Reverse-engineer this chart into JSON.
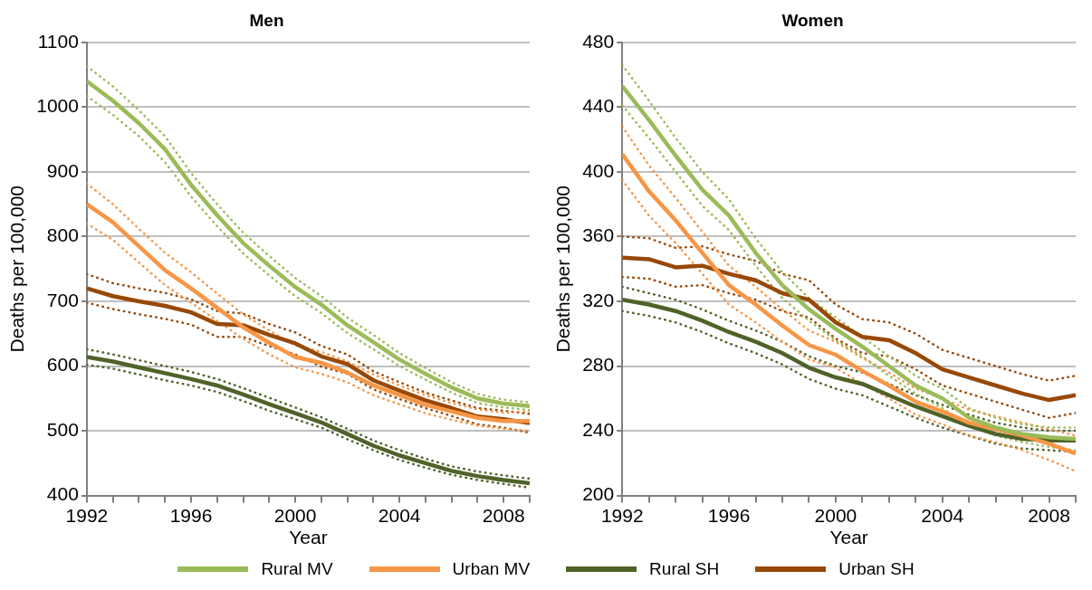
{
  "chart_data": [
    {
      "type": "line",
      "title": "Men",
      "xlabel": "Year",
      "ylabel": "Deaths per 100,000",
      "x": [
        1992,
        1993,
        1994,
        1995,
        1996,
        1997,
        1998,
        1999,
        2000,
        2001,
        2002,
        2003,
        2004,
        2005,
        2006,
        2007,
        2008,
        2009
      ],
      "xlim": [
        1992,
        2009
      ],
      "xticks": [
        1992,
        {
          "value": 1993,
          "label": null
        },
        {
          "value": 1994,
          "label": null
        },
        {
          "value": 1995,
          "label": null
        },
        1996,
        {
          "value": 1997,
          "label": null
        },
        {
          "value": 1998,
          "label": null
        },
        {
          "value": 1999,
          "label": null
        },
        2000,
        {
          "value": 2001,
          "label": null
        },
        {
          "value": 2002,
          "label": null
        },
        {
          "value": 2003,
          "label": null
        },
        2004,
        {
          "value": 2005,
          "label": null
        },
        {
          "value": 2006,
          "label": null
        },
        {
          "value": 2007,
          "label": null
        },
        2008,
        {
          "value": 2009,
          "label": null
        }
      ],
      "ylim": [
        400,
        1100
      ],
      "yticks": [
        400,
        500,
        600,
        700,
        800,
        900,
        1000,
        1100
      ],
      "grid": "y",
      "legend": "bottom",
      "line_style": "solid",
      "marker": "none",
      "series": [
        {
          "name": "Rural MV",
          "color": "#9bbb59",
          "values": [
            1040,
            1010,
            975,
            935,
            880,
            833,
            790,
            755,
            722,
            695,
            663,
            637,
            610,
            588,
            567,
            550,
            542,
            538
          ]
        },
        {
          "color": "#9bbb59",
          "line_style": "dotted",
          "values": [
            1017,
            988,
            955,
            915,
            862,
            816,
            774,
            740,
            708,
            682,
            651,
            626,
            600,
            579,
            559,
            543,
            536,
            532
          ]
        },
        {
          "color": "#9bbb59",
          "line_style": "dotted",
          "values": [
            1063,
            1032,
            995,
            955,
            898,
            850,
            806,
            770,
            736,
            708,
            675,
            648,
            620,
            597,
            575,
            557,
            548,
            544
          ]
        },
        {
          "name": "Urban MV",
          "color": "#f79646",
          "values": [
            850,
            822,
            785,
            748,
            720,
            690,
            660,
            636,
            614,
            605,
            590,
            570,
            555,
            540,
            530,
            520,
            515,
            515
          ]
        },
        {
          "color": "#f79646",
          "line_style": "dotted",
          "values": [
            820,
            795,
            760,
            725,
            698,
            670,
            642,
            618,
            598,
            588,
            575,
            555,
            541,
            527,
            517,
            508,
            503,
            500
          ]
        },
        {
          "color": "#f79646",
          "line_style": "dotted",
          "values": [
            882,
            850,
            812,
            775,
            745,
            712,
            680,
            655,
            632,
            622,
            607,
            587,
            570,
            555,
            543,
            533,
            528,
            530
          ]
        },
        {
          "name": "Rural SH",
          "color": "#4f6228",
          "values": [
            614,
            607,
            598,
            589,
            580,
            570,
            556,
            541,
            527,
            513,
            495,
            477,
            462,
            450,
            438,
            430,
            424,
            419
          ]
        },
        {
          "color": "#4f6228",
          "line_style": "dotted",
          "values": [
            602,
            596,
            587,
            578,
            570,
            560,
            546,
            531,
            518,
            505,
            487,
            470,
            455,
            443,
            432,
            424,
            418,
            412
          ]
        },
        {
          "color": "#4f6228",
          "line_style": "dotted",
          "values": [
            626,
            618,
            609,
            600,
            591,
            580,
            566,
            551,
            536,
            521,
            503,
            485,
            470,
            457,
            445,
            437,
            431,
            426
          ]
        },
        {
          "name": "Urban SH",
          "color": "#984807",
          "values": [
            720,
            708,
            700,
            693,
            683,
            665,
            663,
            648,
            635,
            615,
            603,
            578,
            562,
            547,
            535,
            522,
            518,
            512
          ]
        },
        {
          "color": "#984807",
          "line_style": "dotted",
          "values": [
            698,
            688,
            680,
            673,
            664,
            645,
            645,
            631,
            618,
            599,
            588,
            564,
            549,
            535,
            523,
            510,
            505,
            497
          ]
        },
        {
          "color": "#984807",
          "line_style": "dotted",
          "values": [
            742,
            728,
            720,
            713,
            703,
            685,
            681,
            665,
            652,
            631,
            618,
            592,
            575,
            559,
            547,
            535,
            531,
            526
          ]
        }
      ]
    },
    {
      "type": "line",
      "title": "Women",
      "xlabel": "Year",
      "ylabel": "Deaths per 100,000",
      "x": [
        1992,
        1993,
        1994,
        1995,
        1996,
        1997,
        1998,
        1999,
        2000,
        2001,
        2002,
        2003,
        2004,
        2005,
        2006,
        2007,
        2008,
        2009
      ],
      "xlim": [
        1992,
        2009
      ],
      "xticks": [
        1992,
        {
          "value": 1993,
          "label": null
        },
        {
          "value": 1994,
          "label": null
        },
        {
          "value": 1995,
          "label": null
        },
        1996,
        {
          "value": 1997,
          "label": null
        },
        {
          "value": 1998,
          "label": null
        },
        {
          "value": 1999,
          "label": null
        },
        2000,
        {
          "value": 2001,
          "label": null
        },
        {
          "value": 2002,
          "label": null
        },
        {
          "value": 2003,
          "label": null
        },
        2004,
        {
          "value": 2005,
          "label": null
        },
        {
          "value": 2006,
          "label": null
        },
        {
          "value": 2007,
          "label": null
        },
        2008,
        {
          "value": 2009,
          "label": null
        }
      ],
      "ylim": [
        200,
        480
      ],
      "yticks": [
        200,
        240,
        280,
        320,
        360,
        400,
        440,
        480
      ],
      "grid": "y",
      "line_style": "solid",
      "marker": "none",
      "series": [
        {
          "color": "#9bbb59",
          "values": [
            453,
            432,
            410,
            389,
            373,
            350,
            330,
            315,
            303,
            292,
            280,
            268,
            260,
            248,
            242,
            238,
            236,
            235
          ]
        },
        {
          "color": "#9bbb59",
          "line_style": "dotted",
          "values": [
            441,
            421,
            400,
            379,
            364,
            342,
            322,
            308,
            296,
            286,
            274,
            263,
            254,
            243,
            237,
            233,
            230,
            228
          ]
        },
        {
          "color": "#9bbb59",
          "line_style": "dotted",
          "values": [
            466,
            444,
            421,
            400,
            383,
            359,
            338,
            322,
            310,
            298,
            286,
            274,
            266,
            254,
            248,
            244,
            242,
            242
          ]
        },
        {
          "color": "#f79646",
          "values": [
            411,
            388,
            370,
            350,
            330,
            318,
            305,
            293,
            287,
            277,
            268,
            258,
            252,
            245,
            241,
            237,
            232,
            226
          ]
        },
        {
          "color": "#f79646",
          "line_style": "dotted",
          "values": [
            395,
            373,
            356,
            337,
            318,
            307,
            295,
            284,
            279,
            269,
            260,
            250,
            244,
            237,
            233,
            228,
            222,
            215
          ]
        },
        {
          "color": "#f79646",
          "line_style": "dotted",
          "values": [
            428,
            404,
            384,
            363,
            342,
            329,
            315,
            302,
            295,
            285,
            276,
            266,
            260,
            253,
            249,
            245,
            241,
            237
          ]
        },
        {
          "color": "#4f6228",
          "values": [
            321,
            318,
            314,
            308,
            301,
            295,
            288,
            279,
            273,
            269,
            262,
            255,
            249,
            243,
            238,
            235,
            234,
            234
          ]
        },
        {
          "color": "#4f6228",
          "line_style": "dotted",
          "values": [
            314,
            311,
            307,
            301,
            294,
            288,
            281,
            272,
            266,
            262,
            255,
            248,
            242,
            237,
            232,
            229,
            228,
            227
          ]
        },
        {
          "color": "#4f6228",
          "line_style": "dotted",
          "values": [
            329,
            325,
            321,
            315,
            308,
            302,
            295,
            286,
            280,
            276,
            269,
            262,
            256,
            250,
            245,
            242,
            240,
            240
          ]
        },
        {
          "color": "#984807",
          "values": [
            347,
            346,
            341,
            342,
            337,
            333,
            325,
            321,
            307,
            298,
            296,
            288,
            278,
            273,
            268,
            263,
            259,
            262
          ]
        },
        {
          "color": "#984807",
          "line_style": "dotted",
          "values": [
            335,
            334,
            329,
            330,
            325,
            321,
            314,
            310,
            297,
            288,
            286,
            278,
            268,
            263,
            258,
            253,
            248,
            251
          ]
        },
        {
          "color": "#984807",
          "line_style": "dotted",
          "values": [
            360,
            359,
            353,
            354,
            349,
            345,
            337,
            333,
            318,
            309,
            307,
            300,
            290,
            285,
            280,
            275,
            271,
            274
          ]
        }
      ]
    }
  ]
}
